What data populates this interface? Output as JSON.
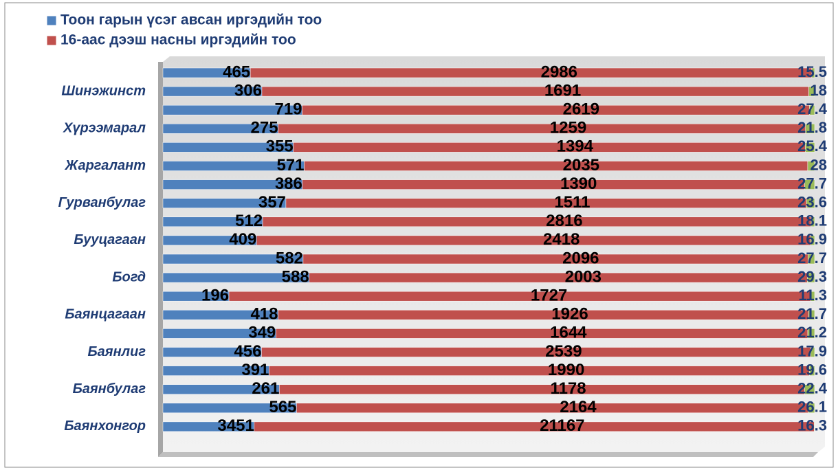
{
  "chart_data": {
    "type": "bar",
    "orientation": "horizontal",
    "stacking": "percent",
    "categories": [
      null,
      "Шинэжинст",
      null,
      "Хүрээмарал",
      null,
      "Жаргалант",
      null,
      "Гурванбулаг",
      null,
      "Бууцагаан",
      null,
      "Богд",
      null,
      "Баянцагаан",
      null,
      "Баянлиг",
      null,
      "Баянбулаг",
      null,
      "Баянхонгор"
    ],
    "series": [
      {
        "name": "Тоон гарын үсэг авсан иргэдийн тоо",
        "color": "#4f81bd",
        "values": [
          465,
          306,
          719,
          275,
          355,
          571,
          386,
          357,
          512,
          409,
          582,
          588,
          196,
          418,
          349,
          456,
          391,
          261,
          565,
          3451
        ]
      },
      {
        "name": "16-аас дээш насны иргэдийн тоо",
        "color": "#c0504d",
        "values": [
          2986,
          1691,
          2619,
          1259,
          1394,
          2035,
          1390,
          1511,
          2816,
          2418,
          2096,
          2003,
          1727,
          1926,
          1644,
          2539,
          1990,
          1178,
          2164,
          21167
        ]
      },
      {
        "color": "#9bbb59",
        "values": [
          15.5,
          18,
          27.4,
          21.8,
          25.4,
          28,
          27.7,
          23.6,
          18.1,
          16.9,
          27.7,
          29.3,
          11.3,
          21.7,
          21.2,
          17.9,
          19.6,
          22.4,
          26.1,
          16.3
        ]
      }
    ],
    "legend": "top-left"
  }
}
